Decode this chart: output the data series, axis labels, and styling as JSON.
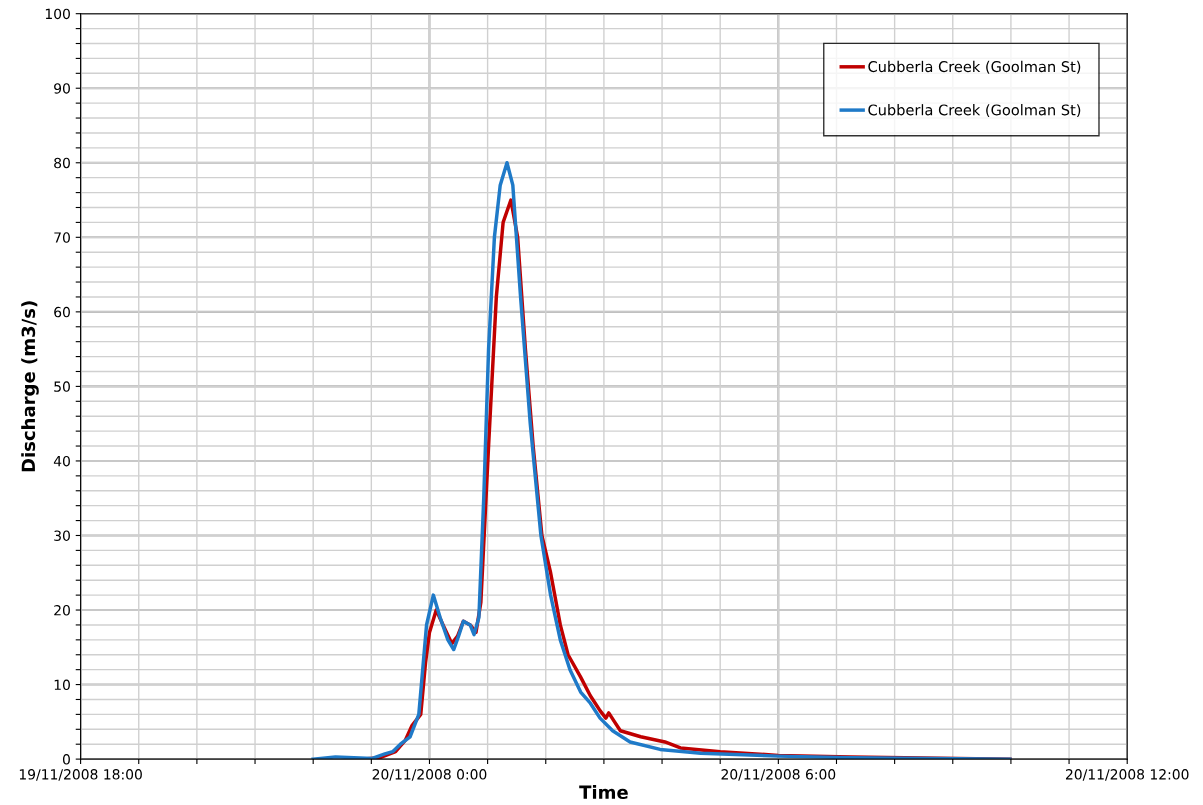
{
  "chart_data": {
    "type": "line",
    "xlabel": "Time",
    "ylabel": "Discharge (m3/s)",
    "legend": "top right",
    "grid": true,
    "line_style": "solid",
    "marker": "none",
    "xlim": [
      "2008-11-19T18:00",
      "2008-11-20T12:00"
    ],
    "xticks": [
      {
        "value": "2008-11-19T18:00",
        "label": "19/11/2008 18:00"
      },
      {
        "value": "2008-11-19T19:00",
        "label": null
      },
      {
        "value": "2008-11-19T20:00",
        "label": null
      },
      {
        "value": "2008-11-19T21:00",
        "label": null
      },
      {
        "value": "2008-11-19T22:00",
        "label": null
      },
      {
        "value": "2008-11-19T23:00",
        "label": null
      },
      {
        "value": "2008-11-20T00:00",
        "label": "20/11/2008 0:00"
      },
      {
        "value": "2008-11-20T01:00",
        "label": null
      },
      {
        "value": "2008-11-20T02:00",
        "label": null
      },
      {
        "value": "2008-11-20T03:00",
        "label": null
      },
      {
        "value": "2008-11-20T04:00",
        "label": null
      },
      {
        "value": "2008-11-20T05:00",
        "label": null
      },
      {
        "value": "2008-11-20T06:00",
        "label": "20/11/2008 6:00"
      },
      {
        "value": "2008-11-20T07:00",
        "label": null
      },
      {
        "value": "2008-11-20T08:00",
        "label": null
      },
      {
        "value": "2008-11-20T09:00",
        "label": null
      },
      {
        "value": "2008-11-20T10:00",
        "label": null
      },
      {
        "value": "2008-11-20T11:00",
        "label": null
      },
      {
        "value": "2008-11-20T12:00",
        "label": "20/11/2008 12:00"
      }
    ],
    "ylim": [
      0,
      100
    ],
    "yticks": [
      0,
      {
        "value": 2,
        "label": null
      },
      {
        "value": 4,
        "label": null
      },
      {
        "value": 6,
        "label": null
      },
      {
        "value": 8,
        "label": null
      },
      10,
      {
        "value": 12,
        "label": null
      },
      {
        "value": 14,
        "label": null
      },
      {
        "value": 16,
        "label": null
      },
      {
        "value": 18,
        "label": null
      },
      20,
      {
        "value": 22,
        "label": null
      },
      {
        "value": 24,
        "label": null
      },
      {
        "value": 26,
        "label": null
      },
      {
        "value": 28,
        "label": null
      },
      30,
      {
        "value": 32,
        "label": null
      },
      {
        "value": 34,
        "label": null
      },
      {
        "value": 36,
        "label": null
      },
      {
        "value": 38,
        "label": null
      },
      40,
      {
        "value": 42,
        "label": null
      },
      {
        "value": 44,
        "label": null
      },
      {
        "value": 46,
        "label": null
      },
      {
        "value": 48,
        "label": null
      },
      50,
      {
        "value": 52,
        "label": null
      },
      {
        "value": 54,
        "label": null
      },
      {
        "value": 56,
        "label": null
      },
      {
        "value": 58,
        "label": null
      },
      60,
      {
        "value": 62,
        "label": null
      },
      {
        "value": 64,
        "label": null
      },
      {
        "value": 66,
        "label": null
      },
      {
        "value": 68,
        "label": null
      },
      70,
      {
        "value": 72,
        "label": null
      },
      {
        "value": 74,
        "label": null
      },
      {
        "value": 76,
        "label": null
      },
      {
        "value": 78,
        "label": null
      },
      80,
      {
        "value": 82,
        "label": null
      },
      {
        "value": 84,
        "label": null
      },
      {
        "value": 86,
        "label": null
      },
      {
        "value": 88,
        "label": null
      },
      90,
      {
        "value": 92,
        "label": null
      },
      {
        "value": 94,
        "label": null
      },
      {
        "value": 96,
        "label": null
      },
      {
        "value": 98,
        "label": null
      },
      100
    ],
    "series": [
      {
        "name": "Cubberla Creek (Goolman St)",
        "color": "#c00000",
        "x": [
          "2008-11-19T22:49",
          "2008-11-19T23:09",
          "2008-11-19T23:25",
          "2008-11-19T23:35",
          "2008-11-19T23:42",
          "2008-11-19T23:51",
          "2008-11-19T23:56",
          "2008-11-20T00:00",
          "2008-11-20T00:07",
          "2008-11-20T00:14",
          "2008-11-20T00:23",
          "2008-11-20T00:29",
          "2008-11-20T00:35",
          "2008-11-20T00:42",
          "2008-11-20T00:48",
          "2008-11-20T00:53",
          "2008-11-20T01:01",
          "2008-11-20T01:09",
          "2008-11-20T01:16",
          "2008-11-20T01:24",
          "2008-11-20T01:31",
          "2008-11-20T01:39",
          "2008-11-20T01:47",
          "2008-11-20T01:56",
          "2008-11-20T02:05",
          "2008-11-20T02:15",
          "2008-11-20T02:23",
          "2008-11-20T02:36",
          "2008-11-20T02:46",
          "2008-11-20T02:56",
          "2008-11-20T03:02",
          "2008-11-20T03:05",
          "2008-11-20T03:11",
          "2008-11-20T03:17",
          "2008-11-20T03:38",
          "2008-11-20T04:03",
          "2008-11-20T04:19",
          "2008-11-20T05:00",
          "2008-11-20T06:00",
          "2008-11-20T07:15",
          "2008-11-20T09:59"
        ],
        "values": [
          0,
          0.2,
          1.0,
          2.5,
          4.5,
          6,
          13,
          17,
          20,
          18,
          15.5,
          16.5,
          18.5,
          18,
          17,
          21,
          42,
          62,
          72,
          75,
          70,
          55,
          42,
          30,
          25,
          18,
          14,
          11,
          8.5,
          6.5,
          5.5,
          6.2,
          5,
          3.8,
          3.0,
          2.3,
          1.5,
          1.0,
          0.5,
          0.3,
          0
        ]
      },
      {
        "name": "Cubberla Creek (Goolman St)",
        "color": "#1f7ac8",
        "x": [
          "2008-11-19T22:00",
          "2008-11-19T22:23",
          "2008-11-19T23:01",
          "2008-11-19T23:14",
          "2008-11-19T23:22",
          "2008-11-19T23:30",
          "2008-11-19T23:40",
          "2008-11-19T23:49",
          "2008-11-19T23:53",
          "2008-11-19T23:57",
          "2008-11-20T00:04",
          "2008-11-20T00:11",
          "2008-11-20T00:19",
          "2008-11-20T00:25",
          "2008-11-20T00:30",
          "2008-11-20T00:35",
          "2008-11-20T00:42",
          "2008-11-20T00:46",
          "2008-11-20T00:51",
          "2008-11-20T00:56",
          "2008-11-20T01:01",
          "2008-11-20T01:07",
          "2008-11-20T01:13",
          "2008-11-20T01:20",
          "2008-11-20T01:26",
          "2008-11-20T01:34",
          "2008-11-20T01:44",
          "2008-11-20T01:55",
          "2008-11-20T02:05",
          "2008-11-20T02:15",
          "2008-11-20T02:25",
          "2008-11-20T02:36",
          "2008-11-20T02:46",
          "2008-11-20T02:56",
          "2008-11-20T03:09",
          "2008-11-20T03:27",
          "2008-11-20T03:58",
          "2008-11-20T04:40",
          "2008-11-20T06:00",
          "2008-11-20T07:15",
          "2008-11-20T09:59"
        ],
        "values": [
          0,
          0.3,
          0.1,
          0.7,
          1.0,
          2.0,
          3.0,
          6,
          12,
          18,
          22,
          19,
          16,
          14.7,
          16.5,
          18.5,
          18,
          16.7,
          19,
          35,
          55,
          70,
          77,
          80,
          77,
          62,
          45,
          30,
          22,
          16,
          12,
          9,
          7.5,
          5.5,
          3.8,
          2.3,
          1.3,
          0.8,
          0.4,
          0.2,
          0
        ]
      }
    ]
  }
}
